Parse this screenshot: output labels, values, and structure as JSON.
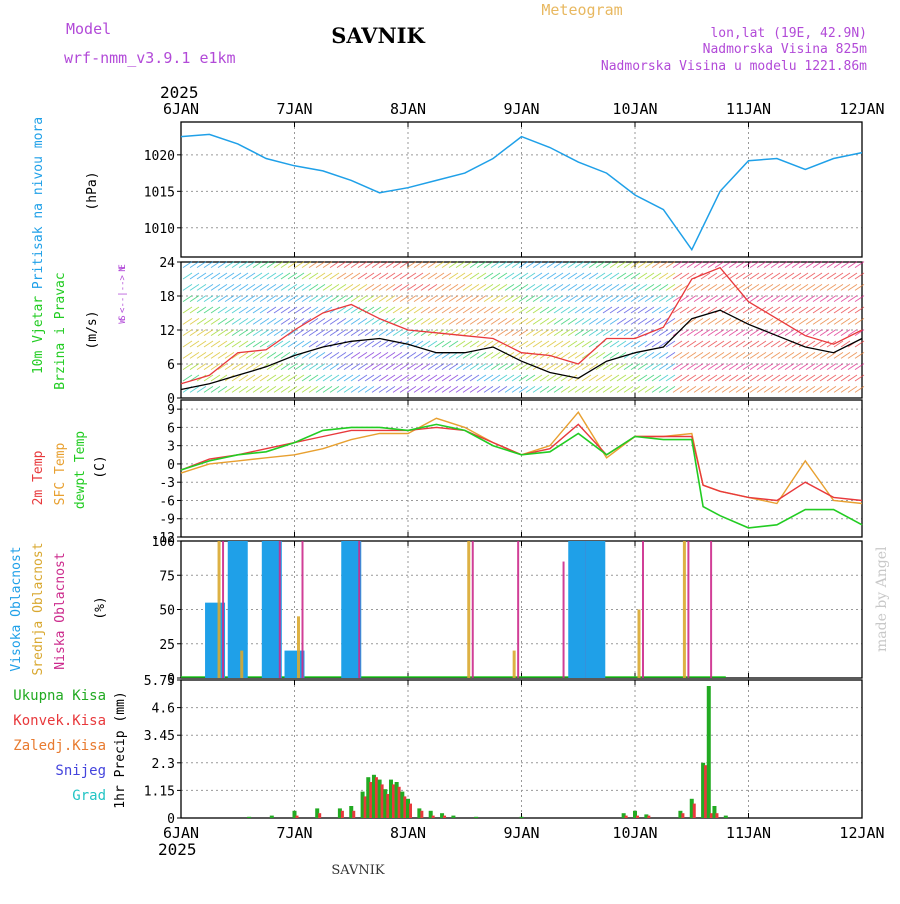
{
  "header": {
    "model_label": "Model",
    "model_name": "wrf-nmm_v3.9.1 e1km",
    "title": "SAVNIK",
    "meteogram": "Meteogram",
    "lonlat": "lon,lat (19E, 42.9N)",
    "elevation": "Nadmorska Visina 825m",
    "model_elevation": "Nadmorska Visina u modelu 1221.86m"
  },
  "footer": {
    "station": "SAVNIK",
    "watermark": "made by Angel"
  },
  "time_axis": {
    "year": "2025",
    "ticks": [
      "6JAN",
      "7JAN",
      "8JAN",
      "9JAN",
      "10JAN",
      "11JAN",
      "12JAN"
    ]
  },
  "colors": {
    "pressure": "#1fa0e8",
    "wind_speed": "#000000",
    "wind_gust": "#e8393c",
    "temp_2m": "#e8393c",
    "temp_sfc": "#e8a030",
    "dewpt": "#22cc22",
    "cloud_high": "#1fa0e8",
    "cloud_mid": "#d9a830",
    "cloud_low": "#cc2a8c",
    "precip_total": "#22aa22",
    "precip_conv": "#e8393c",
    "precip_frozen": "#e87b30",
    "snow": "#4444dd",
    "hail": "#22c4c4"
  },
  "chart_data": [
    {
      "type": "line",
      "name": "pressure",
      "ylabel": [
        "Pritisak na nivou mora",
        "(hPa)"
      ],
      "yticks": [
        "1010",
        "1015",
        "1020"
      ],
      "ylim": [
        1006,
        1024.5
      ],
      "grid": true,
      "x": [
        0,
        0.25,
        0.5,
        0.75,
        1.0,
        1.25,
        1.5,
        1.75,
        2.0,
        2.25,
        2.5,
        2.75,
        3.0,
        3.25,
        3.5,
        3.75,
        4.0,
        4.25,
        4.5,
        4.75,
        5.0,
        5.25,
        5.5,
        5.75,
        6.0
      ],
      "series": [
        {
          "values": [
            1022.5,
            1022.8,
            1021.5,
            1019.5,
            1018.5,
            1017.8,
            1016.5,
            1014.8,
            1015.5,
            1016.5,
            1017.5,
            1019.5,
            1022.5,
            1021.0,
            1019.0,
            1017.5,
            1014.5,
            1012.5,
            1007.0,
            1015.0,
            1019.2,
            1019.5,
            1018.0,
            1019.5,
            1020.3
          ]
        }
      ]
    },
    {
      "type": "line",
      "name": "wind",
      "ylabel": [
        "10m Vjetar",
        "Brzina i Pravac",
        "(m/s)"
      ],
      "direction_legend": [
        "N",
        "W <--|--> E",
        "S"
      ],
      "yticks": [
        "0",
        "6",
        "12",
        "18",
        "24"
      ],
      "ylim": [
        0,
        24
      ],
      "grid": true,
      "x": [
        0,
        0.25,
        0.5,
        0.75,
        1.0,
        1.25,
        1.5,
        1.75,
        2.0,
        2.25,
        2.5,
        2.75,
        3.0,
        3.25,
        3.5,
        3.75,
        4.0,
        4.25,
        4.5,
        4.75,
        5.0,
        5.25,
        5.5,
        5.75,
        6.0
      ],
      "series": [
        {
          "name": "speed",
          "values": [
            1.5,
            2.5,
            4.0,
            5.5,
            7.5,
            9.0,
            10.0,
            10.5,
            9.5,
            8.0,
            8.0,
            9.0,
            6.5,
            4.5,
            3.5,
            6.5,
            8.0,
            9.0,
            14.0,
            15.5,
            13.0,
            11.0,
            9.0,
            8.0,
            10.5
          ]
        },
        {
          "name": "gust",
          "values": [
            2.5,
            4.0,
            8.0,
            8.5,
            12.0,
            15.0,
            16.5,
            14.0,
            12.0,
            11.5,
            11.0,
            10.5,
            8.0,
            7.5,
            6.0,
            10.5,
            10.5,
            12.5,
            21.0,
            23.0,
            17.0,
            14.0,
            11.0,
            9.5,
            12.0
          ]
        }
      ]
    },
    {
      "type": "line",
      "name": "temperature",
      "ylabel": [
        "2m Temp",
        "SFC Temp",
        "dewpt Temp",
        "(C)"
      ],
      "yticks": [
        "-12",
        "-9",
        "-6",
        "-3",
        "0",
        "3",
        "6",
        "9"
      ],
      "ylim": [
        -12,
        10.5
      ],
      "grid": true,
      "x": [
        0,
        0.25,
        0.5,
        0.75,
        1.0,
        1.25,
        1.5,
        1.75,
        2.0,
        2.25,
        2.5,
        2.75,
        3.0,
        3.25,
        3.5,
        3.75,
        4.0,
        4.25,
        4.5,
        4.6,
        4.75,
        5.0,
        5.25,
        5.5,
        5.75,
        6.0
      ],
      "series": [
        {
          "name": "temp_2m",
          "values": [
            -1.0,
            0.8,
            1.5,
            2.5,
            3.5,
            4.5,
            5.5,
            5.5,
            5.5,
            6.0,
            5.5,
            3.5,
            1.5,
            2.5,
            6.5,
            1.5,
            4.5,
            4.5,
            4.5,
            -3.5,
            -4.5,
            -5.5,
            -6.0,
            -3.0,
            -5.5,
            -6.0
          ]
        },
        {
          "name": "temp_sfc",
          "values": [
            -1.5,
            0,
            0.5,
            1.0,
            1.5,
            2.5,
            4.0,
            5.0,
            5.0,
            7.5,
            6.0,
            3.5,
            1.5,
            3.0,
            8.5,
            1.0,
            4.5,
            4.5,
            5.0,
            -3.5,
            -4.5,
            -5.5,
            -6.5,
            0.5,
            -6.0,
            -6.5
          ]
        },
        {
          "name": "dewpt",
          "values": [
            -1.0,
            0.5,
            1.5,
            2.0,
            3.5,
            5.5,
            6.0,
            6.0,
            5.5,
            6.5,
            5.5,
            3.0,
            1.5,
            2.0,
            5.0,
            1.5,
            4.5,
            4.0,
            4.0,
            -7.0,
            -8.5,
            -10.5,
            -10.0,
            -7.5,
            -7.5,
            -10.0
          ]
        }
      ]
    },
    {
      "type": "bar",
      "name": "cloud_cover",
      "ylabel": [
        "Visoka Oblacnost",
        "Srednja Oblacnost",
        "Niska Oblacnost",
        "(%)"
      ],
      "yticks": [
        "0",
        "25",
        "50",
        "75",
        "100"
      ],
      "ylim": [
        0,
        100
      ],
      "grid": true,
      "x": [
        0.3,
        0.5,
        0.8,
        1.0,
        1.5,
        2.5,
        2.9,
        3.3,
        3.5,
        3.65,
        4.0,
        4.4,
        4.6
      ],
      "series": [
        {
          "name": "Visoka",
          "values": [
            55,
            100,
            100,
            20,
            100,
            0,
            0,
            0,
            100,
            100,
            0,
            0,
            0
          ]
        },
        {
          "name": "Srednja",
          "values": [
            100,
            20,
            0,
            45,
            0,
            100,
            20,
            0,
            0,
            0,
            50,
            100,
            0
          ]
        },
        {
          "name": "Niska",
          "values": [
            100,
            0,
            100,
            100,
            100,
            100,
            100,
            85,
            100,
            0,
            100,
            100,
            100
          ]
        }
      ]
    },
    {
      "type": "bar",
      "name": "precipitation",
      "ylabel": [
        "1hr Precip (mm)"
      ],
      "legend": [
        "Ukupna Kisa",
        "Konvek.Kisa",
        "Zaledj.Kisa",
        "Snijeg",
        "Grad"
      ],
      "yticks": [
        "0",
        "1.15",
        "2.3",
        "3.45",
        "4.6",
        "5.75"
      ],
      "ylim": [
        0,
        5.75
      ],
      "grid": true,
      "x": [
        0.6,
        0.8,
        1.0,
        1.2,
        1.4,
        1.5,
        1.6,
        1.65,
        1.7,
        1.75,
        1.8,
        1.85,
        1.9,
        1.95,
        2.0,
        2.1,
        2.2,
        2.3,
        2.4,
        2.6,
        3.0,
        3.9,
        4.0,
        4.1,
        4.4,
        4.5,
        4.6,
        4.65,
        4.7,
        4.8
      ],
      "series": [
        {
          "name": "Ukupna Kisa",
          "values": [
            0.05,
            0.1,
            0.3,
            0.4,
            0.4,
            0.5,
            1.1,
            1.7,
            1.8,
            1.6,
            1.2,
            1.6,
            1.5,
            1.1,
            0.8,
            0.4,
            0.3,
            0.2,
            0.1,
            0.05,
            0.05,
            0.2,
            0.3,
            0.15,
            0.3,
            0.8,
            2.3,
            5.5,
            0.5,
            0.1
          ]
        },
        {
          "name": "Konvek.Kisa",
          "values": [
            0,
            0,
            0.1,
            0.2,
            0.3,
            0.3,
            0.9,
            1.5,
            1.7,
            1.4,
            1.0,
            1.4,
            1.3,
            0.9,
            0.6,
            0.3,
            0.1,
            0.1,
            0,
            0,
            0,
            0.1,
            0.1,
            0.1,
            0.2,
            0.6,
            2.2,
            0.2,
            0.2,
            0
          ]
        }
      ]
    }
  ]
}
